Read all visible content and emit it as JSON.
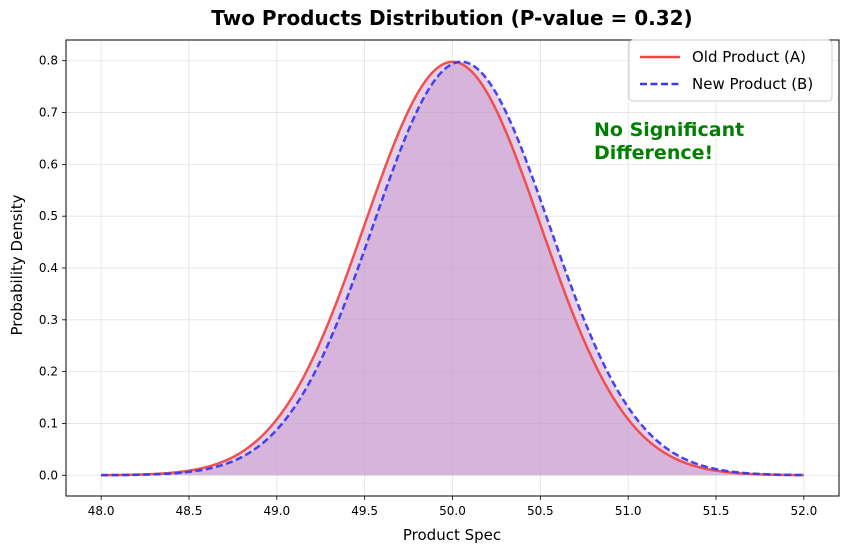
{
  "chart_data": {
    "type": "line",
    "title": "Two Products Distribution (P-value = 0.32)",
    "xlabel": "Product Spec",
    "ylabel": "Probability Density",
    "xlim": [
      47.8,
      52.2
    ],
    "ylim": [
      -0.04,
      0.84
    ],
    "xticks": [
      48.0,
      48.5,
      49.0,
      49.5,
      50.0,
      50.5,
      51.0,
      51.5,
      52.0
    ],
    "xtick_labels": [
      "48.0",
      "48.5",
      "49.0",
      "49.5",
      "50.0",
      "50.5",
      "51.0",
      "51.5",
      "52.0"
    ],
    "yticks": [
      0.0,
      0.1,
      0.2,
      0.3,
      0.4,
      0.5,
      0.6,
      0.7,
      0.8
    ],
    "ytick_labels": [
      "0.0",
      "0.1",
      "0.2",
      "0.3",
      "0.4",
      "0.5",
      "0.6",
      "0.7",
      "0.8"
    ],
    "grid": true,
    "legend_position": "top-right",
    "series": [
      {
        "name": "Old Product (A)",
        "distribution": "normal",
        "mean": 50.0,
        "std": 0.5,
        "x_range": [
          48.0,
          52.0
        ],
        "peak_density": 0.798,
        "color": "#f04848",
        "line_style": "solid",
        "fill_color": "#c08ac8",
        "fill_opacity": 0.4
      },
      {
        "name": "New Product (B)",
        "distribution": "normal",
        "mean": 50.05,
        "std": 0.5,
        "x_range": [
          48.0,
          52.0
        ],
        "peak_density": 0.798,
        "color": "#3a3af0",
        "line_style": "dashed",
        "fill_color": "#c08ac8",
        "fill_opacity": 0.4
      }
    ],
    "annotation": {
      "lines": [
        "No Significant",
        "Difference!"
      ],
      "x": 50.8,
      "y": 0.62,
      "color": "#008000"
    }
  }
}
